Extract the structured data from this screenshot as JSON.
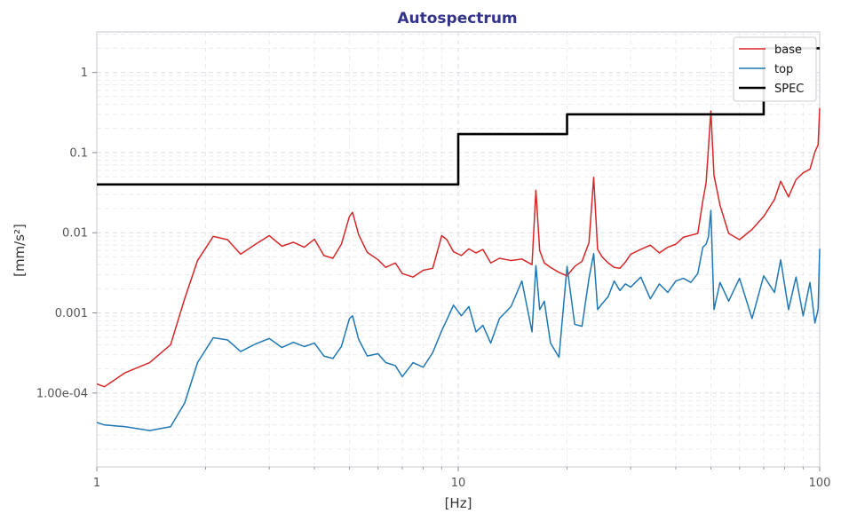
{
  "chart_data": {
    "type": "line",
    "title": "Autospectrum",
    "xlabel": "[Hz]",
    "ylabel": "[mm/s²]",
    "x_scale": "log",
    "y_scale": "log",
    "xlim": [
      1,
      100
    ],
    "ylim": [
      1.2e-05,
      3.2
    ],
    "x_ticks": [
      {
        "value": 1,
        "label": "1"
      },
      {
        "value": 10,
        "label": "10"
      },
      {
        "value": 100,
        "label": "100"
      }
    ],
    "y_ticks": [
      {
        "value": 0.0001,
        "label": "1.00e-04"
      },
      {
        "value": 0.001,
        "label": "0.001"
      },
      {
        "value": 0.01,
        "label": "0.01"
      },
      {
        "value": 0.1,
        "label": "0.1"
      },
      {
        "value": 1,
        "label": "1"
      }
    ],
    "grid": true,
    "legend_position": "top-right",
    "series": [
      {
        "name": "base",
        "color": "#d62728",
        "x": [
          1,
          1.05,
          1.2,
          1.4,
          1.6,
          1.75,
          1.9,
          2.1,
          2.3,
          2.5,
          2.75,
          3,
          3.25,
          3.5,
          3.75,
          4,
          4.25,
          4.5,
          4.75,
          5,
          5.1,
          5.3,
          5.6,
          6,
          6.3,
          6.7,
          7,
          7.5,
          8,
          8.5,
          9,
          9.3,
          9.7,
          10.2,
          10.7,
          11.2,
          11.7,
          12.3,
          13,
          14,
          15,
          16,
          16.4,
          16.8,
          17.3,
          18,
          19,
          20,
          21,
          22,
          23,
          23.7,
          24.3,
          25,
          26,
          27,
          28,
          29,
          30,
          32,
          34,
          36,
          38,
          40,
          42,
          44,
          46,
          47.5,
          48.5,
          49.2,
          50,
          51,
          53,
          56,
          60,
          65,
          70,
          75,
          78,
          82,
          86,
          90,
          94,
          97,
          99,
          100
        ],
        "values": [
          0.00013,
          0.00012,
          0.00018,
          0.00024,
          0.0004,
          0.0015,
          0.0045,
          0.009,
          0.0082,
          0.0054,
          0.0072,
          0.0092,
          0.0068,
          0.0076,
          0.0066,
          0.0083,
          0.0052,
          0.0048,
          0.0072,
          0.016,
          0.018,
          0.0095,
          0.0057,
          0.0046,
          0.0037,
          0.0042,
          0.0031,
          0.0028,
          0.0034,
          0.0036,
          0.0092,
          0.0082,
          0.0058,
          0.0052,
          0.0063,
          0.0056,
          0.0062,
          0.0042,
          0.0048,
          0.0045,
          0.0047,
          0.004,
          0.034,
          0.006,
          0.0042,
          0.0037,
          0.0032,
          0.0029,
          0.0038,
          0.0044,
          0.0075,
          0.049,
          0.0062,
          0.005,
          0.0042,
          0.0037,
          0.0036,
          0.0043,
          0.0054,
          0.0062,
          0.007,
          0.0056,
          0.0066,
          0.0072,
          0.0088,
          0.0093,
          0.0098,
          0.025,
          0.042,
          0.11,
          0.33,
          0.052,
          0.022,
          0.0098,
          0.0082,
          0.011,
          0.016,
          0.026,
          0.044,
          0.028,
          0.046,
          0.056,
          0.062,
          0.102,
          0.125,
          0.36
        ]
      },
      {
        "name": "top",
        "color": "#1f77b4",
        "x": [
          1,
          1.05,
          1.2,
          1.4,
          1.6,
          1.75,
          1.9,
          2.1,
          2.3,
          2.5,
          2.75,
          3,
          3.25,
          3.5,
          3.75,
          4,
          4.25,
          4.5,
          4.75,
          5,
          5.1,
          5.3,
          5.6,
          6,
          6.3,
          6.7,
          7,
          7.5,
          8,
          8.5,
          9,
          9.3,
          9.7,
          10.2,
          10.7,
          11.2,
          11.7,
          12.3,
          13,
          14,
          15,
          16,
          16.4,
          16.8,
          17.3,
          18,
          19,
          20,
          21,
          22,
          23,
          23.7,
          24.3,
          25,
          26,
          27,
          28,
          29,
          30,
          32,
          34,
          36,
          38,
          40,
          42,
          44,
          46,
          47.5,
          48.5,
          49.2,
          50,
          51,
          53,
          56,
          60,
          65,
          70,
          75,
          78,
          82,
          86,
          90,
          94,
          97,
          99,
          100
        ],
        "values": [
          4.3e-05,
          4e-05,
          3.8e-05,
          3.4e-05,
          3.8e-05,
          7.5e-05,
          0.00024,
          0.00049,
          0.00046,
          0.00033,
          0.00041,
          0.00048,
          0.00037,
          0.00043,
          0.00038,
          0.00042,
          0.00029,
          0.00027,
          0.00038,
          0.00085,
          0.00092,
          0.00047,
          0.00029,
          0.00031,
          0.00024,
          0.00022,
          0.00016,
          0.00024,
          0.00021,
          0.00032,
          0.0006,
          0.00082,
          0.00125,
          0.00092,
          0.0012,
          0.00058,
          0.0007,
          0.00042,
          0.00085,
          0.0012,
          0.0025,
          0.00058,
          0.0039,
          0.0011,
          0.0014,
          0.00042,
          0.00028,
          0.0038,
          0.00072,
          0.00068,
          0.0027,
          0.0055,
          0.0011,
          0.0013,
          0.0016,
          0.0025,
          0.0019,
          0.0023,
          0.0021,
          0.0028,
          0.0015,
          0.0023,
          0.0018,
          0.0025,
          0.0027,
          0.0024,
          0.0031,
          0.0066,
          0.0072,
          0.0088,
          0.019,
          0.0011,
          0.0024,
          0.0014,
          0.0027,
          0.00085,
          0.0029,
          0.0018,
          0.0046,
          0.0011,
          0.0028,
          0.00092,
          0.0024,
          0.00075,
          0.0011,
          0.0063
        ]
      },
      {
        "name": "SPEC",
        "color": "#000000",
        "step": true,
        "x": [
          1,
          10,
          10,
          20,
          20,
          70,
          70,
          100
        ],
        "values": [
          0.04,
          0.04,
          0.17,
          0.17,
          0.3,
          0.3,
          2.0,
          2.0
        ]
      }
    ]
  }
}
